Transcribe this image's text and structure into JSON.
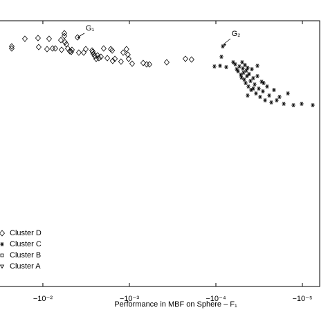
{
  "chart_data": {
    "type": "scatter",
    "xlabel": "Performance in MBF on Sphere – F₁",
    "xscale": "log",
    "xlim": [
      -0.0313,
      -6.31e-06
    ],
    "xticks": [
      {
        "value": -0.01,
        "label": "−10⁻²"
      },
      {
        "value": -0.001,
        "label": "−10⁻³"
      },
      {
        "value": -0.0001,
        "label": "−10⁻⁴"
      },
      {
        "value": -1e-05,
        "label": "−10⁻⁵"
      }
    ],
    "ylim": [
      0,
      384
    ],
    "legend": "lower left",
    "annotations": [
      {
        "text": "G₁"
      },
      {
        "text": "G₂"
      }
    ],
    "series": [
      {
        "name": "Cluster D",
        "marker": "diamond",
        "color": "#000000",
        "x": [
          -0.0229,
          -0.0229,
          -0.01614,
          -0.01138,
          -0.01117,
          -0.00895,
          -0.00847,
          -0.00773,
          -0.00718,
          -0.00619,
          -0.00608,
          -0.00565,
          -0.00565,
          -0.00555,
          -0.00535,
          -0.00515,
          -0.00488,
          -0.0047,
          -0.00461,
          -0.00398,
          -0.00384,
          -0.00337,
          -0.00319,
          -0.0027,
          -0.00265,
          -0.00261,
          -0.00251,
          -0.00242,
          -0.00233,
          -0.00225,
          -0.00213,
          -0.00198,
          -0.0018,
          -0.00164,
          -0.00158,
          -0.00156,
          -0.00147,
          -0.00125,
          -0.00118,
          -0.00108,
          -0.00104,
          -0.00102,
          -0.000929,
          -0.000692,
          -0.000631,
          -0.000586,
          -0.00037,
          -0.000225,
          -0.000191
        ],
        "values": [
          347,
          344,
          358,
          359,
          346,
          343,
          358,
          344,
          344,
          356,
          342,
          366,
          362,
          353,
          350,
          344,
          340,
          339,
          342,
          360,
          338,
          338,
          343,
          341,
          339,
          336,
          333,
          329,
          334,
          330,
          332,
          344,
          330,
          343,
          341,
          326,
          329,
          325,
          338,
          343,
          335,
          329,
          322,
          323,
          321,
          321,
          324,
          329,
          328
        ]
      },
      {
        "name": "Cluster C",
        "marker": "star",
        "color": "#000000",
        "x": [
          -8.32e-05,
          -8.63e-05,
          -0.000104,
          -8.95e-05,
          -7.59e-05,
          -6.31e-05,
          -5.97e-05,
          -5.75e-05,
          -5.55e-05,
          -5.35e-05,
          -5.15e-05,
          -5.06e-05,
          -4.97e-05,
          -4.88e-05,
          -4.79e-05,
          -4.7e-05,
          -4.61e-05,
          -4.53e-05,
          -4.45e-05,
          -4.37e-05,
          -4.29e-05,
          -4.21e-05,
          -4.13e-05,
          -3.98e-05,
          -3.91e-05,
          -3.84e-05,
          -3.7e-05,
          -3.56e-05,
          -3.44e-05,
          -3.31e-05,
          -3.19e-05,
          -3.08e-05,
          -2.96e-05,
          -2.86e-05,
          -2.7e-05,
          -2.56e-05,
          -2.42e-05,
          -2.29e-05,
          -2.13e-05,
          -1.98e-05,
          -1.84e-05,
          -1.64e-05,
          -1.47e-05,
          -1.27e-05,
          -1.02e-05,
          -7.59e-06,
          -3.31e-05,
          -3.7e-05,
          -4.29e-05,
          -2.81e-05
        ],
        "values": [
          347,
          332,
          318,
          319,
          317,
          324,
          321,
          314,
          311,
          318,
          306,
          302,
          324,
          315,
          309,
          299,
          320,
          294,
          312,
          304,
          316,
          289,
          307,
          297,
          284,
          314,
          301,
          292,
          279,
          304,
          286,
          274,
          296,
          282,
          269,
          289,
          276,
          266,
          284,
          269,
          274,
          264,
          279,
          262,
          264,
          262,
          319,
          286,
          276,
          294
        ]
      },
      {
        "name": "Cluster B",
        "marker": "square",
        "color": "#000000",
        "x": [],
        "values": []
      },
      {
        "name": "Cluster A",
        "marker": "triangle",
        "color": "#000000",
        "x": [],
        "values": []
      }
    ]
  }
}
